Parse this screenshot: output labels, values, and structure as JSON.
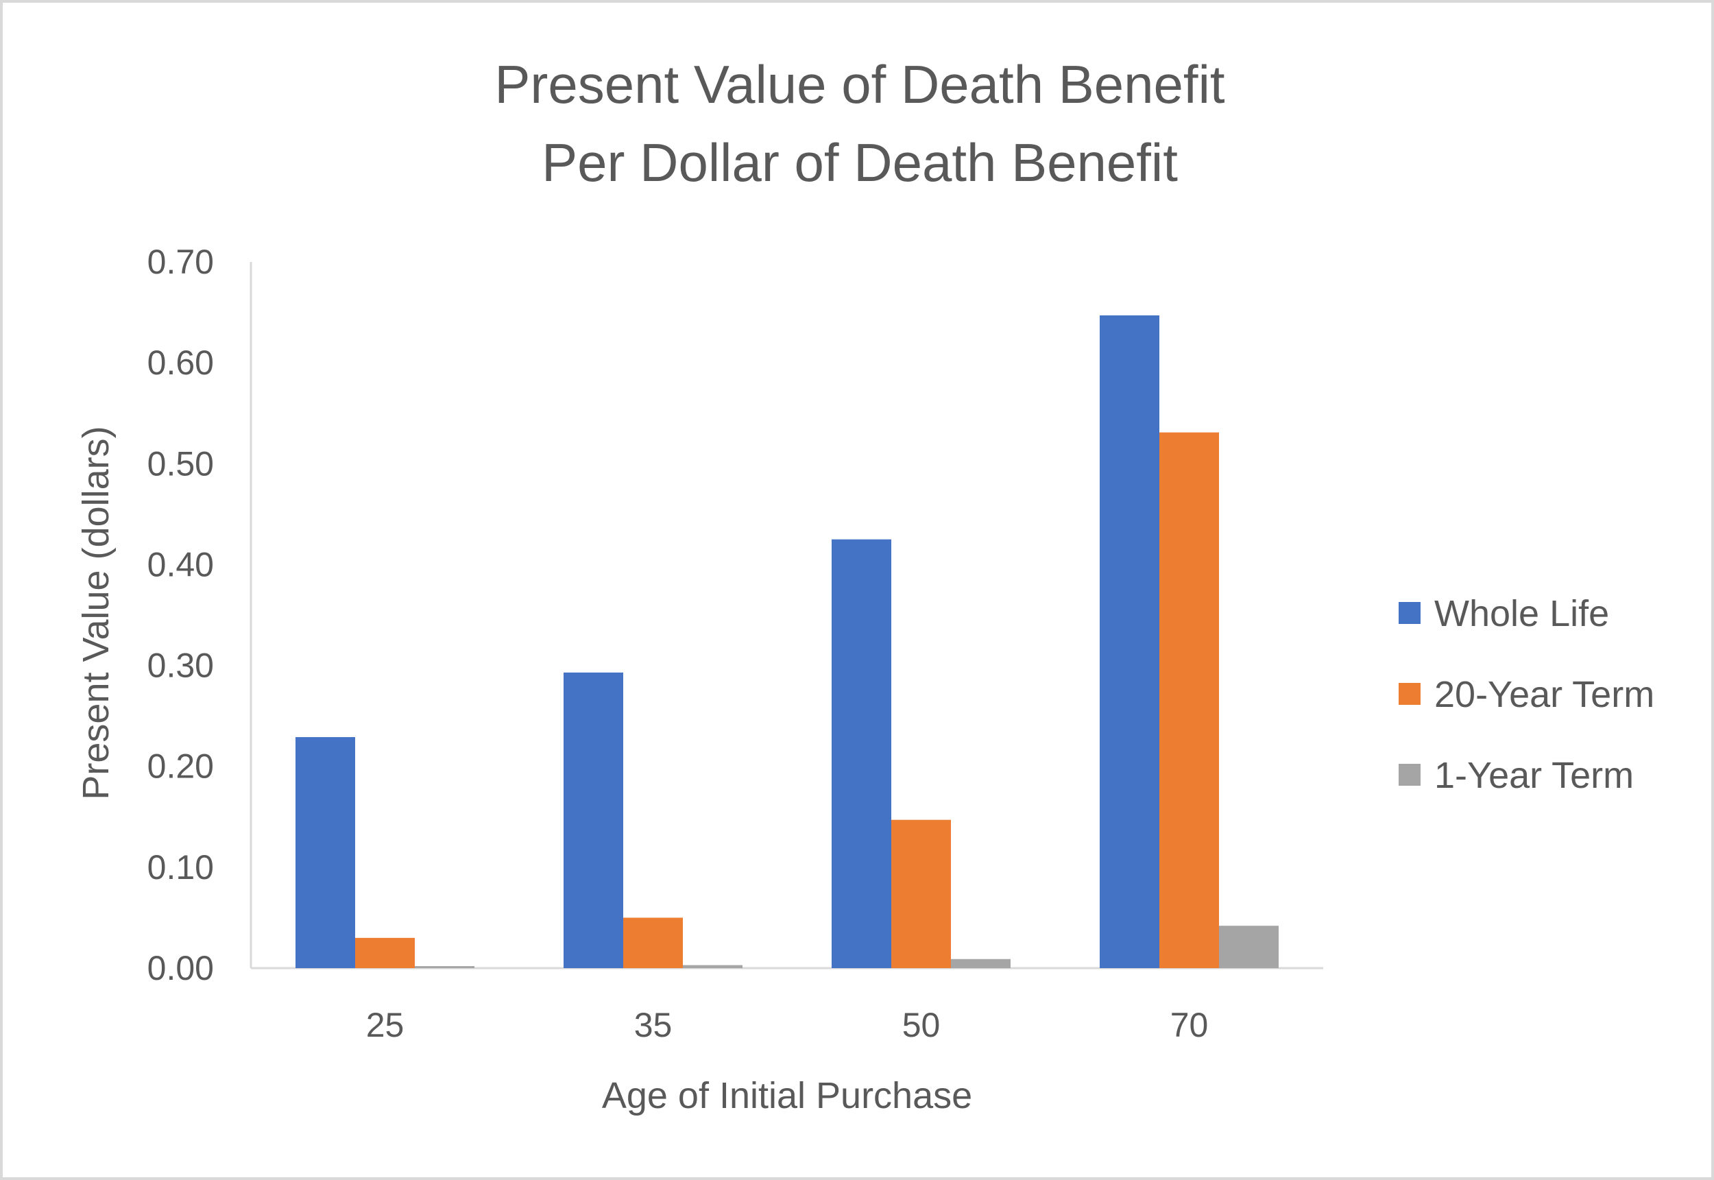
{
  "chart_data": {
    "type": "bar",
    "title": [
      "Present Value of Death Benefit",
      "Per Dollar of Death Benefit"
    ],
    "xlabel": "Age of Initial Purchase",
    "ylabel": "Present Value (dollars)",
    "categories": [
      "25",
      "35",
      "50",
      "70"
    ],
    "ylim": [
      0,
      0.7
    ],
    "yticks": [
      "0.00",
      "0.10",
      "0.20",
      "0.30",
      "0.40",
      "0.50",
      "0.60",
      "0.70"
    ],
    "grid": false,
    "legend_position": "right",
    "series": [
      {
        "name": "Whole Life",
        "color": "#4472C4",
        "values": [
          0.229,
          0.293,
          0.425,
          0.647
        ]
      },
      {
        "name": "20-Year Term",
        "color": "#ED7D31",
        "values": [
          0.03,
          0.05,
          0.147,
          0.531
        ]
      },
      {
        "name": "1-Year Term",
        "color": "#A5A5A5",
        "values": [
          0.002,
          0.003,
          0.009,
          0.042
        ]
      }
    ]
  }
}
